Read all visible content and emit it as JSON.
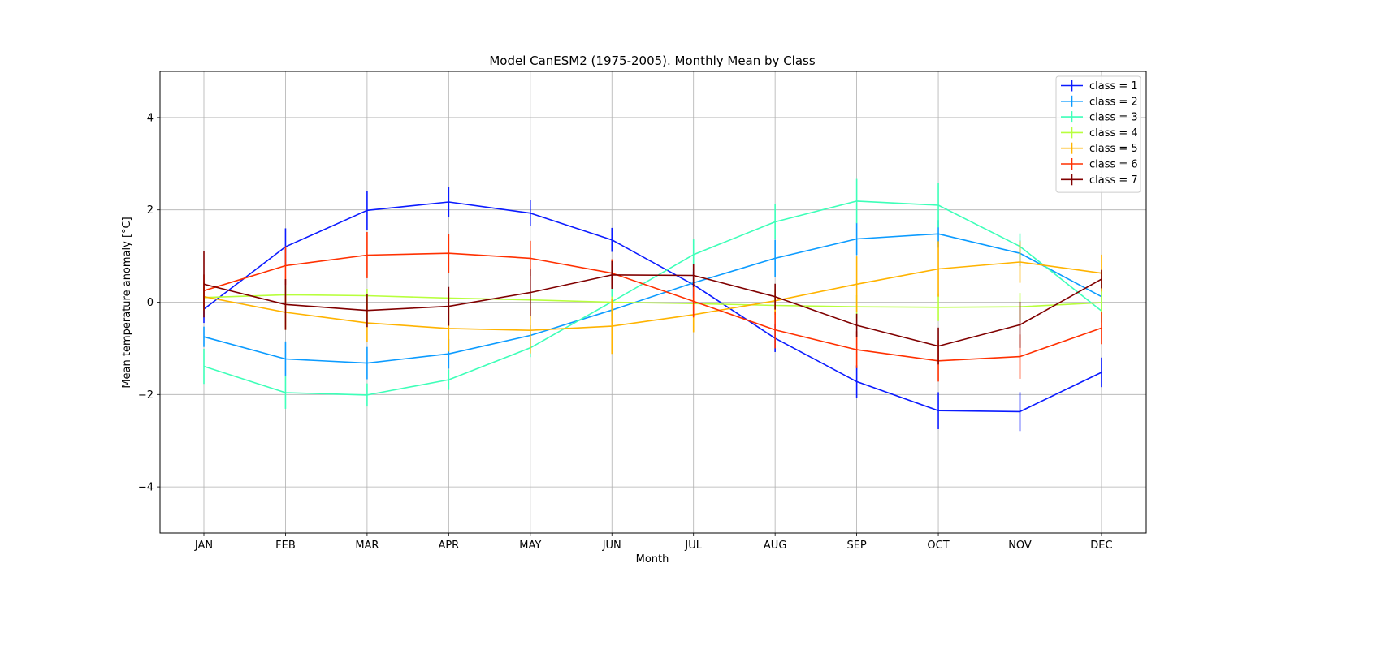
{
  "chart_data": {
    "type": "line",
    "title": "Model CanESM2 (1975-2005). Monthly Mean by Class",
    "xlabel": "Month",
    "ylabel": "Mean temperature anomaly [°C]",
    "ylim": [
      -5,
      5
    ],
    "yticks": [
      -4,
      -2,
      0,
      2,
      4
    ],
    "categories": [
      "JAN",
      "FEB",
      "MAR",
      "APR",
      "MAY",
      "JUN",
      "JUL",
      "AUG",
      "SEP",
      "OCT",
      "NOV",
      "DEC"
    ],
    "grid": true,
    "legend_position": "top-right",
    "error_bars": true,
    "series": [
      {
        "name": "class = 1",
        "color": "#0b1bff",
        "values": [
          -0.15,
          1.2,
          1.99,
          2.17,
          1.93,
          1.35,
          0.38,
          -0.78,
          -1.72,
          -2.35,
          -2.37,
          -1.52
        ],
        "errors": [
          0.3,
          0.4,
          0.42,
          0.32,
          0.28,
          0.26,
          0.28,
          0.3,
          0.35,
          0.4,
          0.42,
          0.32
        ]
      },
      {
        "name": "class = 2",
        "color": "#0b9bff",
        "values": [
          -0.75,
          -1.23,
          -1.32,
          -1.12,
          -0.72,
          -0.17,
          0.42,
          0.95,
          1.37,
          1.48,
          1.06,
          0.12
        ],
        "errors": [
          0.22,
          0.38,
          0.35,
          0.32,
          0.22,
          0.25,
          0.3,
          0.4,
          0.35,
          0.3,
          0.28,
          0.3
        ]
      },
      {
        "name": "class = 3",
        "color": "#3dffb8",
        "values": [
          -1.39,
          -1.96,
          -2.01,
          -1.68,
          -0.99,
          0.01,
          1.03,
          1.74,
          2.19,
          2.1,
          1.21,
          -0.19
        ],
        "errors": [
          0.38,
          0.35,
          0.25,
          0.22,
          0.2,
          0.32,
          0.33,
          0.38,
          0.48,
          0.48,
          0.28,
          0.25
        ]
      },
      {
        "name": "class = 4",
        "color": "#b8ff3d",
        "values": [
          0.1,
          0.16,
          0.14,
          0.09,
          0.05,
          0.0,
          -0.03,
          -0.07,
          -0.1,
          -0.11,
          -0.1,
          -0.01
        ],
        "errors": [
          0.22,
          0.18,
          0.15,
          0.12,
          0.1,
          0.12,
          0.15,
          0.2,
          0.25,
          0.3,
          0.3,
          0.28
        ]
      },
      {
        "name": "class = 5",
        "color": "#ffb300",
        "values": [
          0.12,
          -0.22,
          -0.45,
          -0.57,
          -0.61,
          -0.52,
          -0.27,
          0.03,
          0.39,
          0.72,
          0.87,
          0.63
        ],
        "errors": [
          0.3,
          0.38,
          0.42,
          0.5,
          0.5,
          0.6,
          0.38,
          0.25,
          0.6,
          0.6,
          0.45,
          0.4
        ]
      },
      {
        "name": "class = 6",
        "color": "#ff3000",
        "values": [
          0.25,
          0.79,
          1.02,
          1.06,
          0.95,
          0.63,
          0.02,
          -0.6,
          -1.03,
          -1.27,
          -1.18,
          -0.56
        ],
        "errors": [
          0.35,
          0.42,
          0.5,
          0.42,
          0.38,
          0.3,
          0.35,
          0.4,
          0.4,
          0.45,
          0.48,
          0.35
        ]
      },
      {
        "name": "class = 7",
        "color": "#800000",
        "values": [
          0.39,
          -0.05,
          -0.18,
          -0.09,
          0.21,
          0.59,
          0.58,
          0.12,
          -0.5,
          -0.95,
          -0.49,
          0.5
        ],
        "errors": [
          0.72,
          0.55,
          0.36,
          0.42,
          0.5,
          0.3,
          0.25,
          0.28,
          0.25,
          0.4,
          0.5,
          0.2
        ]
      }
    ]
  }
}
